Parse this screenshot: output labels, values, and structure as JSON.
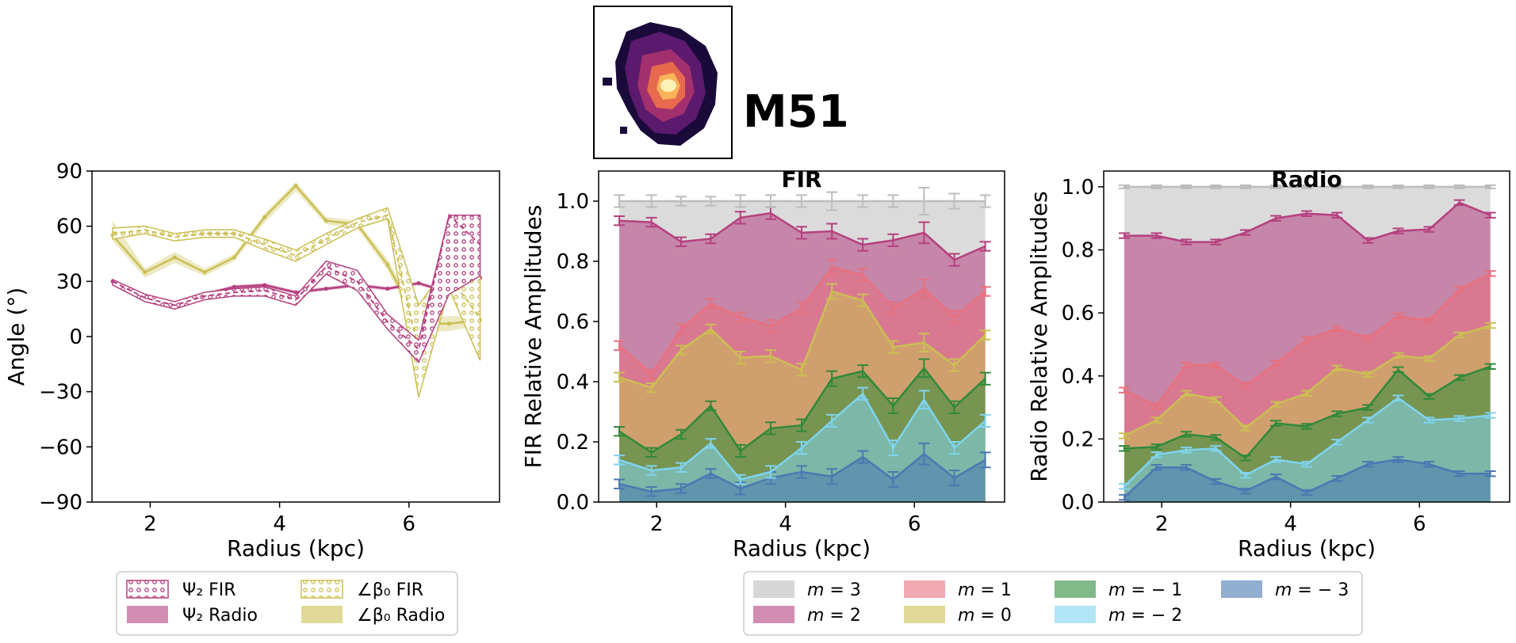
{
  "galaxy": {
    "name": "M51",
    "thumbnail": "galaxy-intensity-map"
  },
  "chart_data": [
    {
      "id": "angle",
      "type": "line",
      "title": "",
      "xlabel": "Radius (kpc)",
      "ylabel": "Angle (°)",
      "xlim": [
        1.1,
        7.4
      ],
      "ylim": [
        -90,
        90
      ],
      "xticks": [
        2,
        4,
        6
      ],
      "yticks": [
        -90,
        -60,
        -30,
        0,
        30,
        60,
        90
      ],
      "ytick_labels": [
        "−90",
        "−60",
        "−30",
        "0",
        "30",
        "60",
        "90"
      ],
      "x": [
        1.42,
        1.92,
        2.38,
        2.84,
        3.3,
        3.77,
        4.25,
        4.72,
        5.2,
        5.67,
        6.15,
        6.62,
        7.1
      ],
      "series": [
        {
          "name": "Ψ₂ Radio",
          "values": [
            30,
            21,
            17,
            23,
            27,
            28,
            24,
            26,
            28,
            26,
            29,
            24,
            32
          ],
          "lower": [
            29,
            20,
            16,
            22,
            26,
            27,
            23,
            25,
            27,
            25,
            28,
            23,
            31
          ],
          "upper": [
            31,
            22,
            18,
            24,
            28,
            29,
            25,
            27,
            29,
            27,
            30,
            25,
            33
          ],
          "color": "#b5407f"
        },
        {
          "name": "Ψ₂ FIR",
          "values": [
            30,
            21,
            17,
            22,
            24,
            25,
            20,
            38,
            30,
            8,
            -7,
            66,
            50
          ],
          "lower": [
            28,
            19,
            15,
            20,
            22,
            22,
            17,
            34,
            25,
            4,
            -14,
            23,
            33
          ],
          "upper": [
            31,
            23,
            19,
            24,
            26,
            27,
            22,
            41,
            36,
            12,
            -2,
            66,
            66
          ],
          "color": "#b5407f"
        },
        {
          "name": "∠β₀ Radio",
          "values": [
            55,
            35,
            43,
            35,
            43,
            65,
            82,
            63,
            61,
            39,
            7,
            7,
            9
          ],
          "lower": [
            52,
            32,
            40,
            33,
            41,
            62,
            79,
            61,
            59,
            36,
            2,
            3,
            6
          ],
          "upper": [
            63,
            37,
            46,
            37,
            45,
            67,
            84,
            65,
            63,
            42,
            11,
            11,
            12
          ],
          "color": "#cbbf52"
        },
        {
          "name": "∠β₀ FIR",
          "values": [
            56,
            58,
            54,
            56,
            56,
            50,
            44,
            53,
            62,
            66,
            -8,
            33,
            10
          ],
          "lower": [
            53,
            56,
            52,
            54,
            54,
            47,
            41,
            50,
            59,
            64,
            -33,
            26,
            -13
          ],
          "upper": [
            59,
            60,
            56,
            58,
            58,
            53,
            47,
            56,
            64,
            70,
            17,
            40,
            33
          ],
          "color": "#cbbf52"
        }
      ],
      "legend": [
        {
          "label": "Ψ₂ FIR",
          "style": "hatched",
          "color": "#b5407f"
        },
        {
          "label": "Ψ₂ Radio",
          "style": "solid",
          "color": "#b5407f"
        },
        {
          "label": "∠β₀ FIR",
          "style": "hatched",
          "color": "#cbbf52"
        },
        {
          "label": "∠β₀ Radio",
          "style": "solid",
          "color": "#cbbf52"
        }
      ]
    },
    {
      "id": "fir",
      "type": "area",
      "title": "FIR",
      "xlabel": "Radius (kpc)",
      "ylabel": "FIR Relative Amplitudes",
      "xlim": [
        1.1,
        7.4
      ],
      "ylim": [
        0.0,
        1.1
      ],
      "xticks": [
        2,
        4,
        6
      ],
      "yticks": [
        0.0,
        0.2,
        0.4,
        0.6,
        0.8,
        1.0
      ],
      "x": [
        1.42,
        1.92,
        2.38,
        2.84,
        3.3,
        3.77,
        4.25,
        4.72,
        5.2,
        5.67,
        6.15,
        6.62,
        7.1
      ],
      "series": [
        {
          "name": "m = −3",
          "values": [
            0.06,
            0.035,
            0.045,
            0.095,
            0.045,
            0.08,
            0.1,
            0.085,
            0.15,
            0.075,
            0.16,
            0.08,
            0.14
          ],
          "err": [
            0.015,
            0.015,
            0.015,
            0.015,
            0.02,
            0.02,
            0.02,
            0.025,
            0.02,
            0.025,
            0.035,
            0.025,
            0.025
          ],
          "color": "#4a78b2"
        },
        {
          "name": "m = −2",
          "values": [
            0.14,
            0.105,
            0.115,
            0.195,
            0.075,
            0.1,
            0.18,
            0.27,
            0.36,
            0.18,
            0.34,
            0.18,
            0.27
          ],
          "err": [
            0.015,
            0.015,
            0.015,
            0.015,
            0.015,
            0.02,
            0.02,
            0.02,
            0.02,
            0.025,
            0.03,
            0.02,
            0.02
          ],
          "color": "#7fd4ef"
        },
        {
          "name": "m = −1",
          "values": [
            0.235,
            0.165,
            0.225,
            0.32,
            0.17,
            0.245,
            0.255,
            0.41,
            0.435,
            0.32,
            0.445,
            0.315,
            0.41
          ],
          "err": [
            0.015,
            0.015,
            0.015,
            0.015,
            0.02,
            0.02,
            0.02,
            0.025,
            0.02,
            0.025,
            0.03,
            0.02,
            0.02
          ],
          "color": "#2f8a3a"
        },
        {
          "name": "m = 0",
          "values": [
            0.415,
            0.38,
            0.505,
            0.575,
            0.48,
            0.485,
            0.44,
            0.7,
            0.67,
            0.515,
            0.53,
            0.455,
            0.555
          ],
          "err": [
            0.015,
            0.015,
            0.015,
            0.015,
            0.02,
            0.02,
            0.02,
            0.025,
            0.02,
            0.02,
            0.03,
            0.02,
            0.015
          ],
          "color": "#cbbf52"
        },
        {
          "name": "m = 1",
          "values": [
            0.52,
            0.425,
            0.575,
            0.66,
            0.615,
            0.585,
            0.645,
            0.78,
            0.755,
            0.645,
            0.71,
            0.615,
            0.7
          ],
          "err": [
            0.015,
            0.015,
            0.015,
            0.015,
            0.015,
            0.02,
            0.02,
            0.025,
            0.02,
            0.02,
            0.03,
            0.02,
            0.015
          ],
          "color": "#e8707e"
        },
        {
          "name": "m = 2",
          "values": [
            0.935,
            0.93,
            0.865,
            0.875,
            0.945,
            0.96,
            0.895,
            0.9,
            0.855,
            0.87,
            0.895,
            0.805,
            0.85
          ],
          "err": [
            0.015,
            0.015,
            0.015,
            0.015,
            0.02,
            0.02,
            0.02,
            0.025,
            0.02,
            0.02,
            0.035,
            0.02,
            0.015
          ],
          "color": "#b5407f"
        },
        {
          "name": "m = 3",
          "values": [
            1.0,
            1.0,
            1.0,
            1.0,
            1.0,
            1.0,
            1.0,
            1.0,
            1.0,
            1.0,
            1.0,
            1.0,
            1.0
          ],
          "err": [
            0.02,
            0.02,
            0.015,
            0.015,
            0.02,
            0.02,
            0.02,
            0.03,
            0.02,
            0.02,
            0.045,
            0.025,
            0.02
          ],
          "color": "#bdbdbd"
        }
      ]
    },
    {
      "id": "radio",
      "type": "area",
      "title": "Radio",
      "xlabel": "Radius (kpc)",
      "ylabel": "Radio Relative Amplitudes",
      "xlim": [
        1.1,
        7.4
      ],
      "ylim": [
        0.0,
        1.05
      ],
      "xticks": [
        2,
        4,
        6
      ],
      "yticks": [
        0.0,
        0.2,
        0.4,
        0.6,
        0.8,
        1.0
      ],
      "x": [
        1.42,
        1.92,
        2.38,
        2.84,
        3.3,
        3.77,
        4.25,
        4.72,
        5.2,
        5.67,
        6.15,
        6.62,
        7.1
      ],
      "series": [
        {
          "name": "m = −3",
          "values": [
            0.015,
            0.11,
            0.11,
            0.065,
            0.035,
            0.08,
            0.03,
            0.075,
            0.12,
            0.135,
            0.12,
            0.09,
            0.09
          ],
          "err": [
            0.008,
            0.008,
            0.008,
            0.008,
            0.008,
            0.008,
            0.008,
            0.008,
            0.008,
            0.008,
            0.008,
            0.008,
            0.008
          ],
          "color": "#4a78b2"
        },
        {
          "name": "m = −2",
          "values": [
            0.05,
            0.15,
            0.165,
            0.17,
            0.085,
            0.135,
            0.12,
            0.19,
            0.26,
            0.33,
            0.26,
            0.265,
            0.275
          ],
          "err": [
            0.008,
            0.008,
            0.008,
            0.008,
            0.008,
            0.008,
            0.008,
            0.008,
            0.008,
            0.008,
            0.008,
            0.008,
            0.008
          ],
          "color": "#7fd4ef"
        },
        {
          "name": "m = −1",
          "values": [
            0.17,
            0.175,
            0.215,
            0.205,
            0.14,
            0.25,
            0.24,
            0.28,
            0.3,
            0.42,
            0.335,
            0.395,
            0.43
          ],
          "err": [
            0.008,
            0.008,
            0.008,
            0.008,
            0.008,
            0.008,
            0.008,
            0.008,
            0.008,
            0.008,
            0.008,
            0.008,
            0.008
          ],
          "color": "#2f8a3a"
        },
        {
          "name": "m = 0",
          "values": [
            0.21,
            0.26,
            0.345,
            0.325,
            0.235,
            0.31,
            0.345,
            0.425,
            0.405,
            0.465,
            0.455,
            0.53,
            0.56
          ],
          "err": [
            0.008,
            0.008,
            0.008,
            0.008,
            0.008,
            0.008,
            0.008,
            0.008,
            0.008,
            0.008,
            0.008,
            0.008,
            0.008
          ],
          "color": "#cbbf52"
        },
        {
          "name": "m = 1",
          "values": [
            0.355,
            0.305,
            0.435,
            0.435,
            0.37,
            0.44,
            0.515,
            0.55,
            0.52,
            0.59,
            0.575,
            0.675,
            0.725
          ],
          "err": [
            0.008,
            0.008,
            0.008,
            0.008,
            0.008,
            0.008,
            0.008,
            0.008,
            0.008,
            0.008,
            0.008,
            0.008,
            0.008
          ],
          "color": "#e8707e"
        },
        {
          "name": "m = 2",
          "values": [
            0.845,
            0.845,
            0.825,
            0.825,
            0.855,
            0.9,
            0.915,
            0.91,
            0.83,
            0.86,
            0.865,
            0.95,
            0.91
          ],
          "err": [
            0.008,
            0.008,
            0.008,
            0.008,
            0.008,
            0.008,
            0.008,
            0.008,
            0.008,
            0.008,
            0.008,
            0.008,
            0.008
          ],
          "color": "#b5407f"
        },
        {
          "name": "m = 3",
          "values": [
            1.0,
            1.0,
            1.0,
            1.0,
            1.0,
            1.0,
            1.0,
            1.0,
            1.0,
            1.0,
            1.0,
            1.0,
            1.0
          ],
          "err": [
            0.005,
            0.005,
            0.005,
            0.005,
            0.005,
            0.005,
            0.005,
            0.005,
            0.005,
            0.005,
            0.005,
            0.005,
            0.005
          ],
          "color": "#bdbdbd"
        }
      ]
    }
  ],
  "mode_legend": [
    {
      "prefix": "m",
      "value": "= 3",
      "color": "#bdbdbd"
    },
    {
      "prefix": "m",
      "value": "= 1",
      "color": "#e8707e"
    },
    {
      "prefix": "m",
      "value": "= − 1",
      "color": "#2f8a3a"
    },
    {
      "prefix": "m",
      "value": "= − 3",
      "color": "#4a78b2"
    },
    {
      "prefix": "m",
      "value": "= 2",
      "color": "#b5407f"
    },
    {
      "prefix": "m",
      "value": "= 0",
      "color": "#cbbf52"
    },
    {
      "prefix": "m",
      "value": "= − 2",
      "color": "#7fd4ef"
    }
  ]
}
